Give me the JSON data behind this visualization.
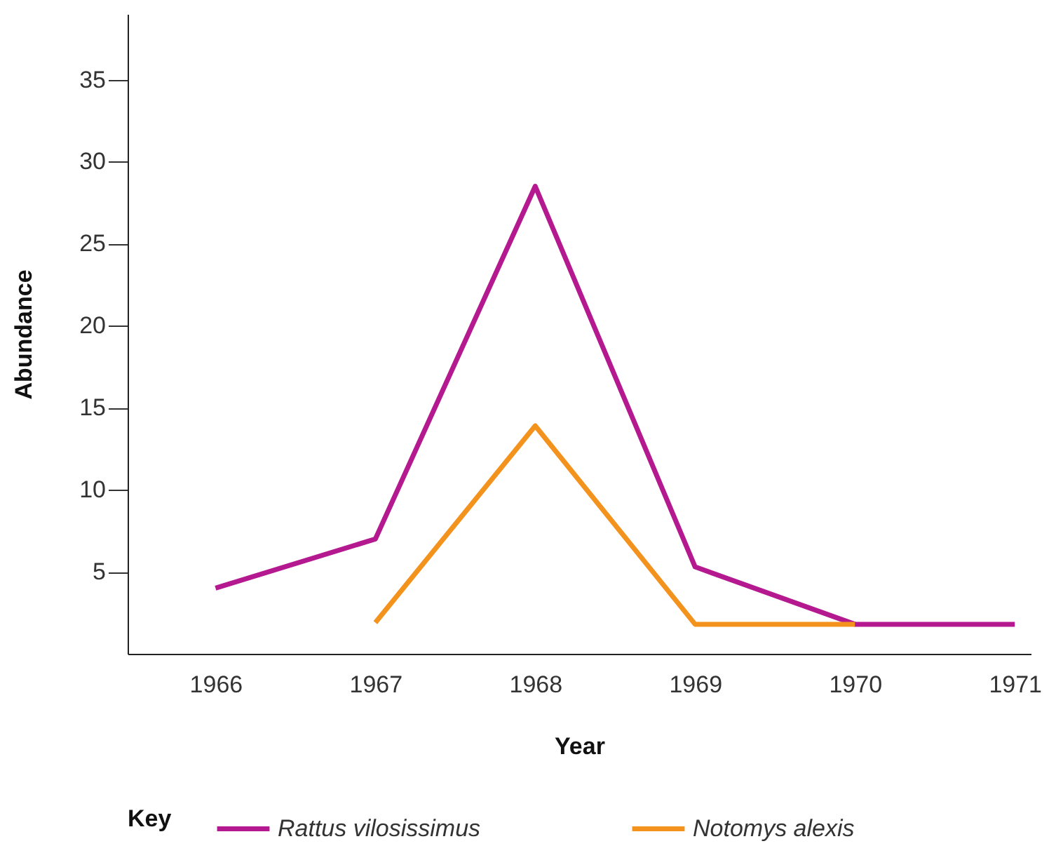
{
  "chart_data": {
    "type": "line",
    "xlabel": "Year",
    "ylabel": "Abundance",
    "legend_title": "Key",
    "legend": "bottom",
    "x": [
      1966,
      1967,
      1968,
      1969,
      1970,
      1971
    ],
    "series": [
      {
        "name": "Rattus vilosissimus",
        "color": "#b5198f",
        "values": [
          4,
          7,
          28.5,
          5.3,
          1.8,
          1.8
        ]
      },
      {
        "name": "Notomys alexis",
        "color": "#f3921c",
        "values": [
          null,
          1.9,
          13.9,
          1.8,
          1.8,
          null
        ]
      }
    ],
    "xlim": [
      1965.45,
      1971.1
    ],
    "xticks": [
      1966,
      1967,
      1968,
      1969,
      1970,
      1971
    ],
    "ylim": [
      0,
      39
    ],
    "yticks": [
      5,
      10,
      15,
      20,
      25,
      30,
      35
    ]
  }
}
